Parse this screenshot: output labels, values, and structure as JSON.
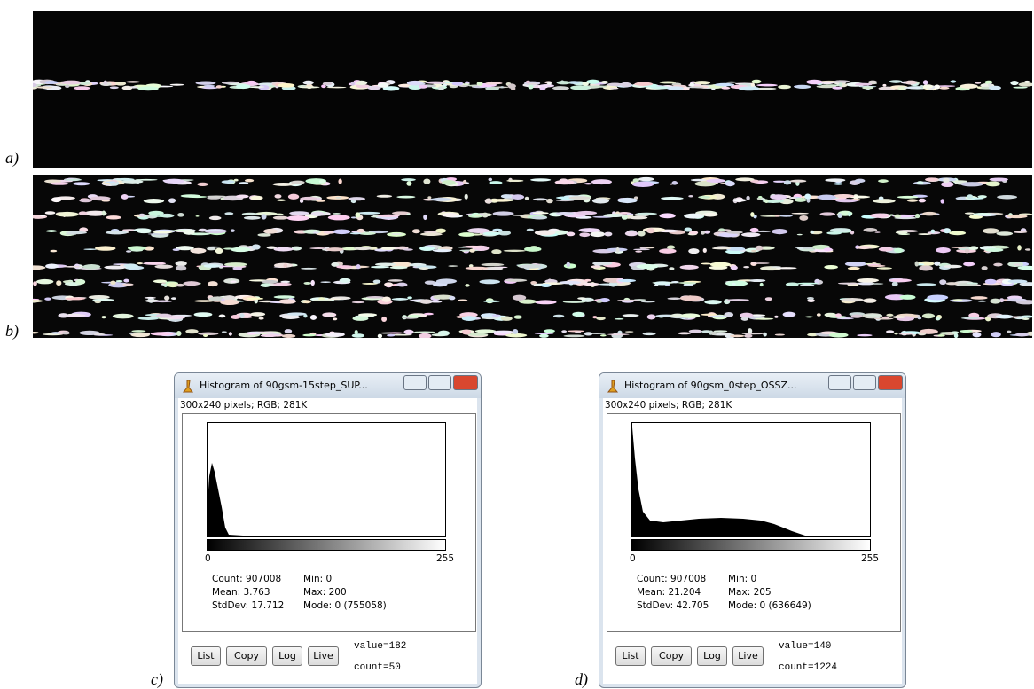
{
  "figure_labels": [
    "a)",
    "b)",
    "c)",
    "d)"
  ],
  "windows": [
    {
      "title": "Histogram of 90gsm-15step_SUP...",
      "info": "300x240 pixels; RGB; 281K",
      "axis_min": "0",
      "axis_max": "255",
      "stats": [
        "Count: 907008",
        "Mean: 3.763",
        "StdDev: 17.712",
        "Min: 0",
        "Max: 200",
        "Mode: 0 (755058)"
      ],
      "buttons": [
        "List",
        "Copy",
        "Log",
        "Live"
      ],
      "value": "value=182",
      "count": "count=50"
    },
    {
      "title": "Histogram of 90gsm_0step_OSSZ...",
      "info": "300x240 pixels; RGB; 281K",
      "axis_min": "0",
      "axis_max": "255",
      "stats": [
        "Count: 907008",
        "Mean: 21.204",
        "StdDev: 42.705",
        "Min: 0",
        "Max: 205",
        "Mode: 0 (636649)"
      ],
      "buttons": [
        "List",
        "Copy",
        "Log",
        "Live"
      ],
      "value": "value=140",
      "count": "count=1224"
    }
  ]
}
